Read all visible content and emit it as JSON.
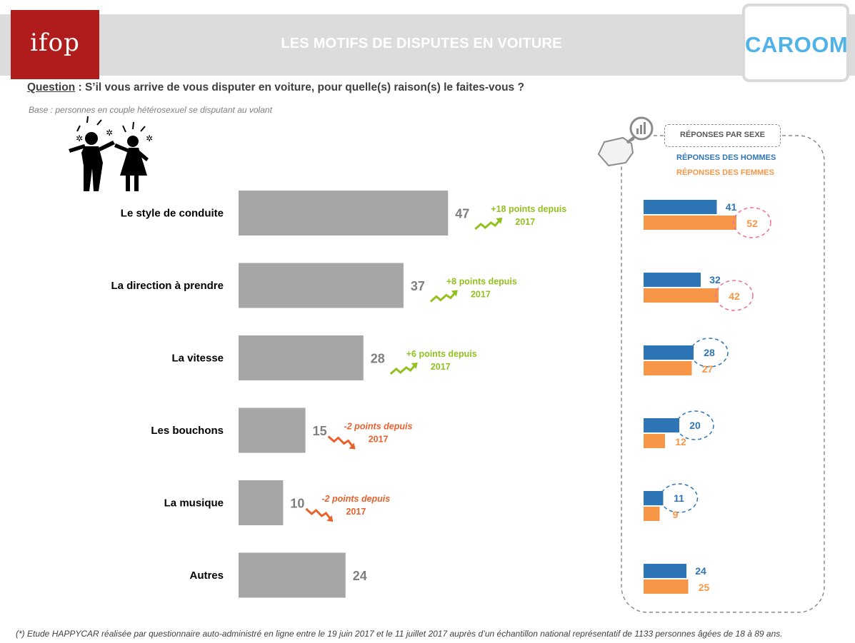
{
  "header": {
    "title": "LES MOTIFS DE DISPUTES EN VOITURE",
    "logo_left": "ifop",
    "logo_right": "CAROOM"
  },
  "question": {
    "label": "Question",
    "text": " : S’il vous arrive de vous disputer en voiture, pour quelle(s) raison(s) le faites-vous ?"
  },
  "base": "Base : personnes en couple hétérosexuel se disputant au volant",
  "footnote": "(*) Etude HAPPYCAR réalisée par questionnaire auto-administré en ligne entre le 19 juin 2017 et le 11 juillet 2017 auprès d’un échantillon national représentatif de 1133 personnes âgées de 18 à 89 ans.",
  "legend": {
    "title": "RÉPONSES PAR SEXE",
    "men": "RÉPONSES DES HOMMES",
    "women": "RÉPONSES DES FEMMES"
  },
  "colors": {
    "bar": "#a6a6a6",
    "men": "#2e75b6",
    "women": "#f79646",
    "trend_up": "#92c01f",
    "trend_down": "#e8602c",
    "circle_women": "#f06ea0",
    "circle_men": "#2e75b6"
  },
  "chart_data": [
    {
      "type": "bar",
      "orientation": "horizontal",
      "categories": [
        "Le style de conduite",
        "La direction à prendre",
        "La vitesse",
        "Les bouchons",
        "La musique",
        "Autres"
      ],
      "values": [
        47,
        37,
        28,
        15,
        10,
        24
      ],
      "trends": [
        {
          "line1": "+18 points depuis",
          "line2": "2017",
          "direction": "up"
        },
        {
          "line1": "+8 points depuis",
          "line2": "2017",
          "direction": "up"
        },
        {
          "line1": "+6 points depuis",
          "line2": "2017",
          "direction": "up"
        },
        {
          "line1": "-2 points depuis",
          "line2": "2017",
          "direction": "down"
        },
        {
          "line1": "-2 points depuis",
          "line2": "2017",
          "direction": "down"
        },
        null
      ]
    },
    {
      "type": "bar",
      "orientation": "horizontal",
      "title": "RÉPONSES PAR SEXE",
      "categories": [
        "Le style de conduite",
        "La direction à prendre",
        "La vitesse",
        "Les bouchons",
        "La musique",
        "Autres"
      ],
      "series": [
        {
          "name": "RÉPONSES DES HOMMES",
          "values": [
            41,
            32,
            28,
            20,
            11,
            24
          ]
        },
        {
          "name": "RÉPONSES DES FEMMES",
          "values": [
            52,
            42,
            27,
            12,
            9,
            25
          ]
        }
      ],
      "highlight": [
        "women",
        "women",
        "men",
        "men",
        "men",
        null
      ]
    }
  ]
}
